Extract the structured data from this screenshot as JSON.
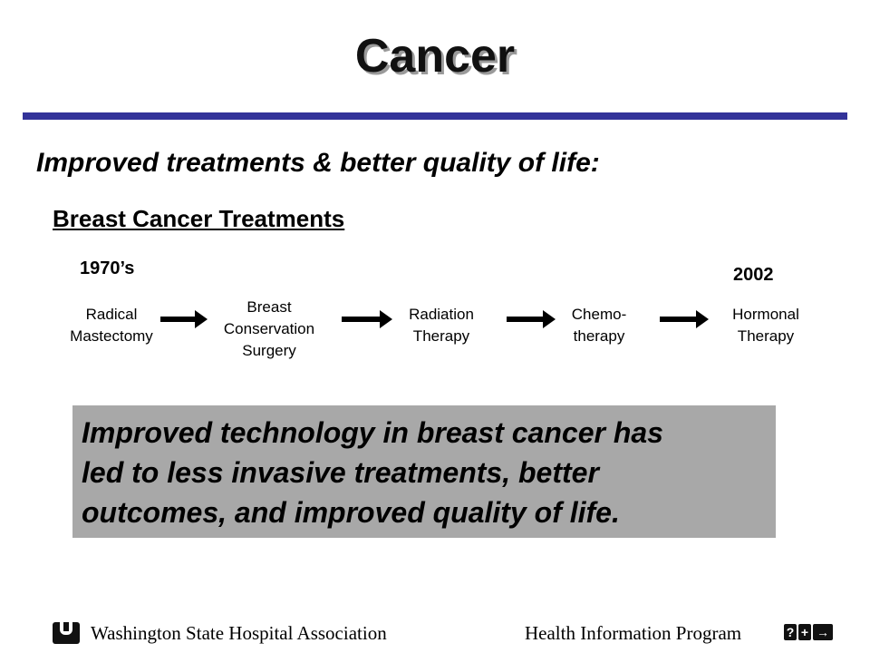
{
  "slide": {
    "title": "Cancer",
    "subtitle": "Improved treatments & better quality of life:",
    "section_heading": "Breast Cancer Treatments",
    "timeline": {
      "start_label": "1970’s",
      "end_label": "2002",
      "steps": [
        {
          "line1": "Radical",
          "line2": "Mastectomy"
        },
        {
          "line1": "Breast",
          "line2": "Conservation",
          "line3": "Surgery"
        },
        {
          "line1": "Radiation",
          "line2": "Therapy"
        },
        {
          "line1": "Chemo-",
          "line2": "therapy"
        },
        {
          "line1": "Hormonal",
          "line2": "Therapy"
        }
      ]
    },
    "callout": {
      "line1": "Improved technology in breast cancer has",
      "line2": "led to less invasive treatments, better",
      "line3": "outcomes, and improved quality of life."
    }
  },
  "footer": {
    "organization": "Washington State Hospital Association",
    "program": "Health Information Program",
    "nav": {
      "help": "?",
      "plus": "+",
      "next": "→"
    }
  },
  "colors": {
    "accent_rule": "#333399",
    "callout_bg": "#a8a8a8"
  }
}
